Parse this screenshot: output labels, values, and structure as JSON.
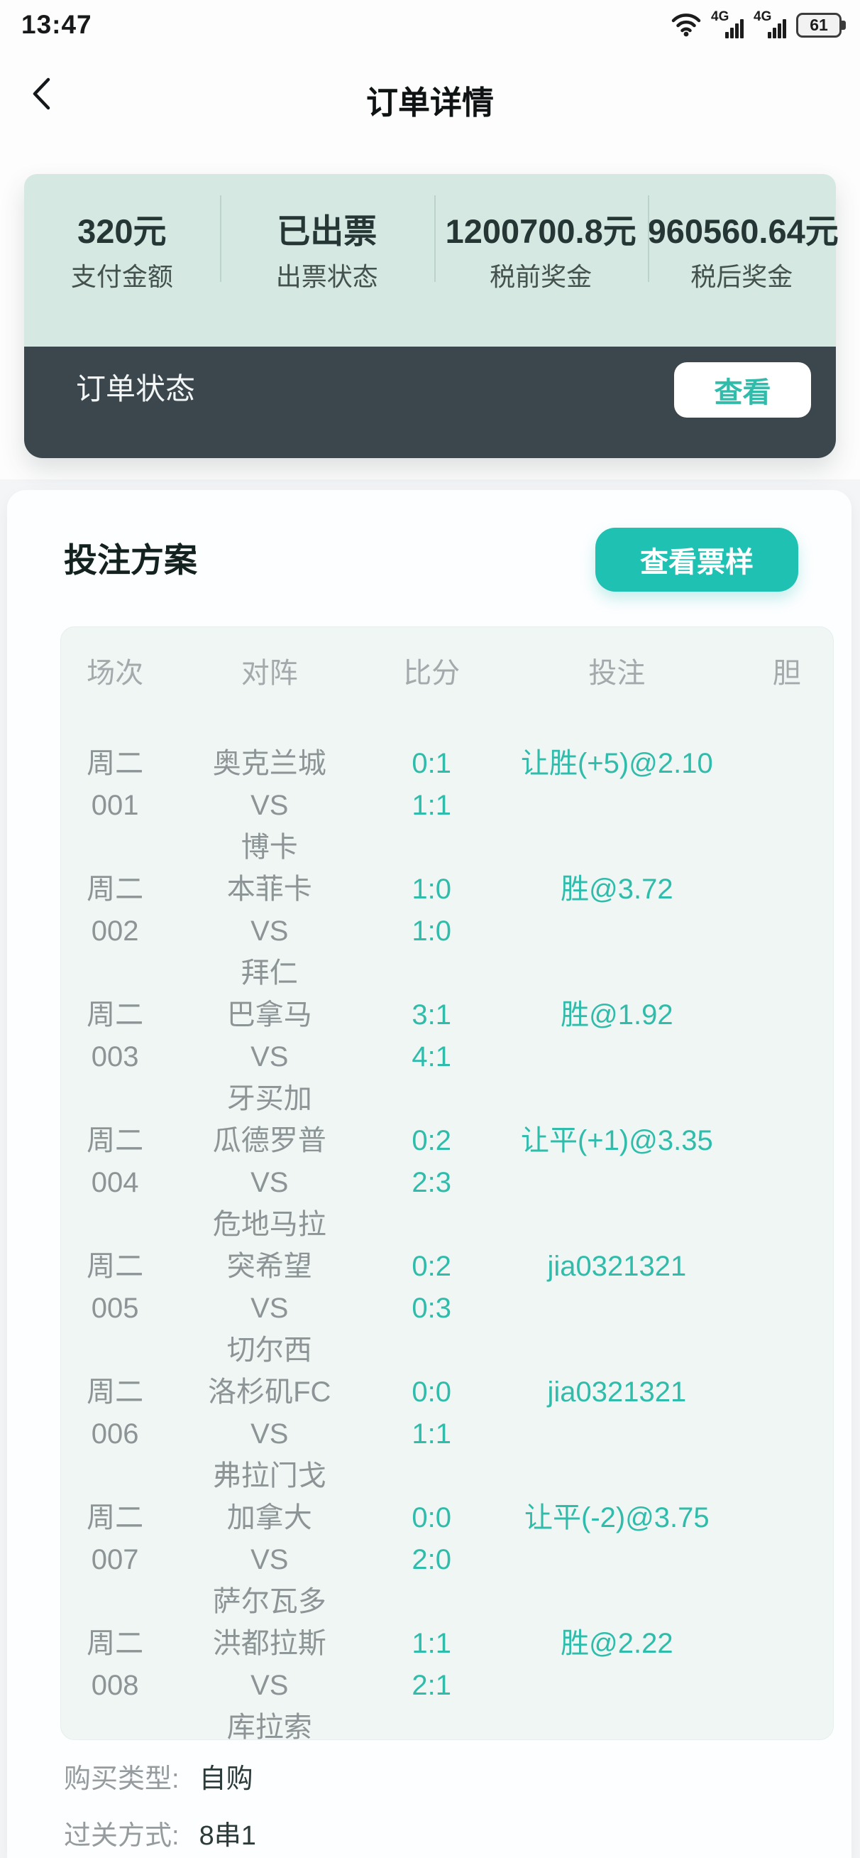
{
  "colors": {
    "accent_teal": "#1ec1b2",
    "teal_text": "#2fbcab",
    "mint_bg": "#d5e9e2",
    "dark_bar": "#3b474d",
    "table_bg": "#f0f6f4",
    "page_bg": "#f3f5f7",
    "gray_text": "#8d9496",
    "header_gray": "#a4aaac",
    "value_dark": "#263635",
    "label_gray": "#44514f"
  },
  "status_bar": {
    "time": "13:47",
    "network_type_1": "4G",
    "network_type_2": "4G",
    "battery_level": "61"
  },
  "nav": {
    "title": "订单详情"
  },
  "summary": {
    "stats": [
      {
        "value": "320元",
        "label": "支付金额"
      },
      {
        "value": "已出票",
        "label": "出票状态"
      },
      {
        "value": "1200700.8元",
        "label": "税前奖金"
      },
      {
        "value": "960560.64元",
        "label": "税后奖金"
      }
    ]
  },
  "order_status": {
    "label": "订单状态",
    "action": "查看"
  },
  "plan": {
    "title": "投注方案",
    "ticket_action": "查看票样",
    "table": {
      "headers": [
        "场次",
        "对阵",
        "比分",
        "投注",
        "胆"
      ],
      "rows": [
        {
          "day": "周二",
          "no": "001",
          "home": "奥克兰城",
          "vs": "VS",
          "away": "博卡",
          "score_top": "0:1",
          "score_bottom": "1:1",
          "bet": "让胜(+5)@2.10",
          "dan": ""
        },
        {
          "day": "周二",
          "no": "002",
          "home": "本菲卡",
          "vs": "VS",
          "away": "拜仁",
          "score_top": "1:0",
          "score_bottom": "1:0",
          "bet": "胜@3.72",
          "dan": ""
        },
        {
          "day": "周二",
          "no": "003",
          "home": "巴拿马",
          "vs": "VS",
          "away": "牙买加",
          "score_top": "3:1",
          "score_bottom": "4:1",
          "bet": "胜@1.92",
          "dan": ""
        },
        {
          "day": "周二",
          "no": "004",
          "home": "瓜德罗普",
          "vs": "VS",
          "away": "危地马拉",
          "score_top": "0:2",
          "score_bottom": "2:3",
          "bet": "让平(+1)@3.35",
          "dan": ""
        },
        {
          "day": "周二",
          "no": "005",
          "home": "突希望",
          "vs": "VS",
          "away": "切尔西",
          "score_top": "0:2",
          "score_bottom": "0:3",
          "bet": "jia0321321",
          "dan": ""
        },
        {
          "day": "周二",
          "no": "006",
          "home": "洛杉矶FC",
          "vs": "VS",
          "away": "弗拉门戈",
          "score_top": "0:0",
          "score_bottom": "1:1",
          "bet": "jia0321321",
          "dan": ""
        },
        {
          "day": "周二",
          "no": "007",
          "home": "加拿大",
          "vs": "VS",
          "away": "萨尔瓦多",
          "score_top": "0:0",
          "score_bottom": "2:0",
          "bet": "让平(-2)@3.75",
          "dan": ""
        },
        {
          "day": "周二",
          "no": "008",
          "home": "洪都拉斯",
          "vs": "VS",
          "away": "库拉索",
          "score_top": "1:1",
          "score_bottom": "2:1",
          "bet": "胜@2.22",
          "dan": ""
        }
      ]
    },
    "info": [
      {
        "label": "购买类型:",
        "value": "自购"
      },
      {
        "label": "过关方式:",
        "value": "8串1"
      }
    ]
  }
}
